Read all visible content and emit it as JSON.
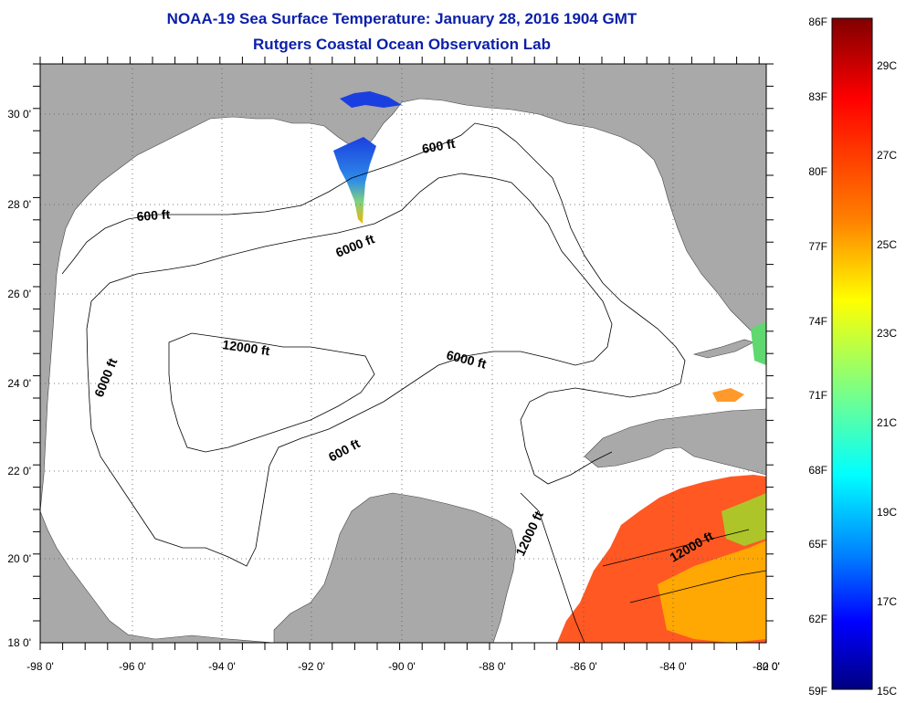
{
  "title_line1": "NOAA-19 Sea Surface Temperature:  January 28, 2016 1904 GMT",
  "title_line2": "Rutgers Coastal Ocean Observation Lab",
  "longitude_labels": [
    "-98 0'",
    "-96 0'",
    "-94 0'",
    "-92 0'",
    "-90 0'",
    "-88 0'",
    "-86 0'",
    "-84 0'",
    "-82 0'",
    "-80 0'"
  ],
  "latitude_labels": [
    "30 0'",
    "28 0'",
    "26 0'",
    "24 0'",
    "22 0'",
    "20 0'",
    "18 0'"
  ],
  "depth_contour_labels": {
    "c600_north": "600 ft",
    "c600_west": "600 ft",
    "c6000_north": "6000 ft",
    "c6000_west": "6000 ft",
    "c6000_east": "6000 ft",
    "c12000_central": "12000 ft",
    "c600_south": "600 ft",
    "c12000_yucatan": "12000 ft",
    "c12000_caribbean": "12000 ft"
  },
  "colorbar": {
    "fahrenheit_labels": [
      "86F",
      "83F",
      "80F",
      "77F",
      "74F",
      "71F",
      "68F",
      "65F",
      "62F",
      "59F"
    ],
    "celsius_labels": [
      "29C",
      "27C",
      "25C",
      "23C",
      "21C",
      "19C",
      "17C",
      "15C"
    ],
    "colors": [
      "#800000",
      "#ff0000",
      "#ff8000",
      "#ffff00",
      "#80ff80",
      "#00ffff",
      "#0080ff",
      "#0000ff",
      "#000080"
    ]
  },
  "land_color": "#a9a9a9",
  "ocean_color": "#ffffff"
}
